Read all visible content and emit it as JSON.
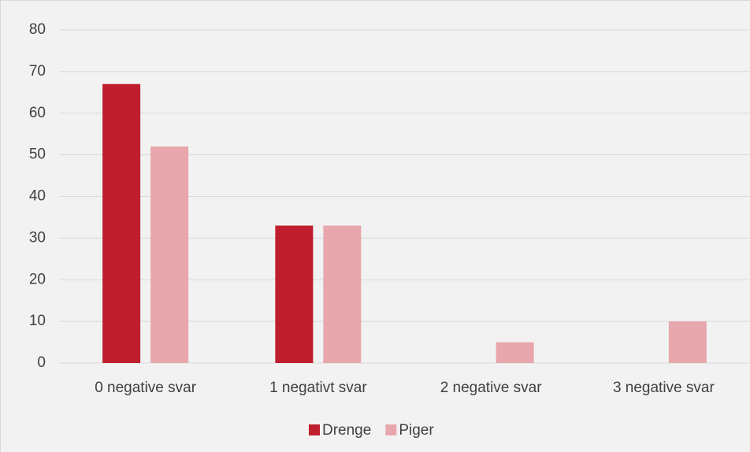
{
  "chart_data": {
    "type": "bar",
    "categories": [
      "0 negative svar",
      "1 negativt svar",
      "2 negative svar",
      "3 negative svar"
    ],
    "series": [
      {
        "name": "Drenge",
        "color": "#be1e2d",
        "values": [
          67,
          33,
          0,
          0
        ]
      },
      {
        "name": "Piger",
        "color": "#e8a7ad",
        "values": [
          52,
          33,
          5,
          10
        ]
      }
    ],
    "ylim": [
      0,
      80
    ],
    "yticks": [
      0,
      10,
      20,
      30,
      40,
      50,
      60,
      70,
      80
    ],
    "grid": true,
    "legend": "bottom"
  }
}
